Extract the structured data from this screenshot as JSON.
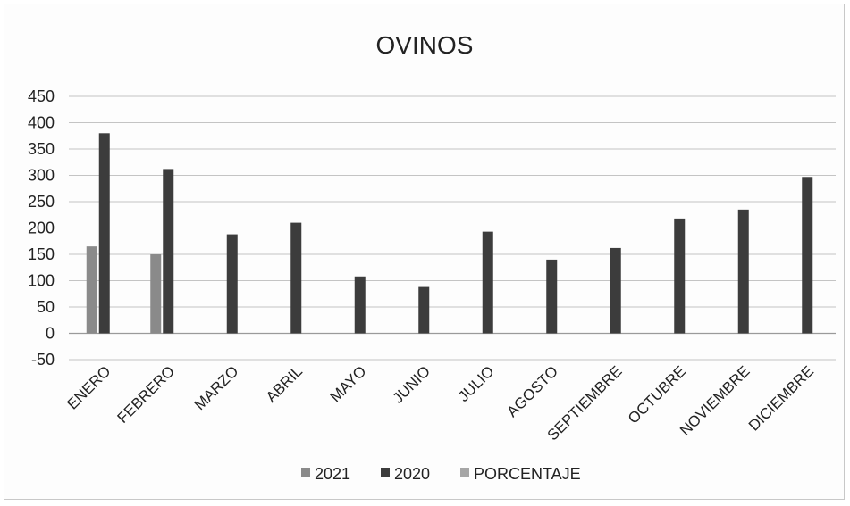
{
  "chart_data": {
    "type": "bar",
    "title": "OVINOS",
    "xlabel": "",
    "ylabel": "",
    "ylim": [
      -50,
      450
    ],
    "yticks": [
      -50,
      0,
      50,
      100,
      150,
      200,
      250,
      300,
      350,
      400,
      450
    ],
    "grid": true,
    "legend_position": "bottom",
    "categories": [
      "ENERO",
      "FEBRERO",
      "MARZO",
      "ABRIL",
      "MAYO",
      "JUNIO",
      "JULIO",
      "AGOSTO",
      "SEPTIEMBRE",
      "OCTUBRE",
      "NOVIEMBRE",
      "DICIEMBRE"
    ],
    "series": [
      {
        "name": "2021",
        "color": "#8a8a8a",
        "values": [
          165,
          150,
          null,
          null,
          null,
          null,
          null,
          null,
          null,
          null,
          null,
          null
        ]
      },
      {
        "name": "2020",
        "color": "#3c3c3c",
        "values": [
          380,
          312,
          188,
          210,
          108,
          88,
          193,
          140,
          162,
          218,
          235,
          297
        ]
      },
      {
        "name": "PORCENTAJE",
        "color": "#a6a6a6",
        "values": [
          null,
          null,
          null,
          null,
          null,
          null,
          null,
          null,
          null,
          null,
          null,
          null
        ]
      }
    ]
  }
}
